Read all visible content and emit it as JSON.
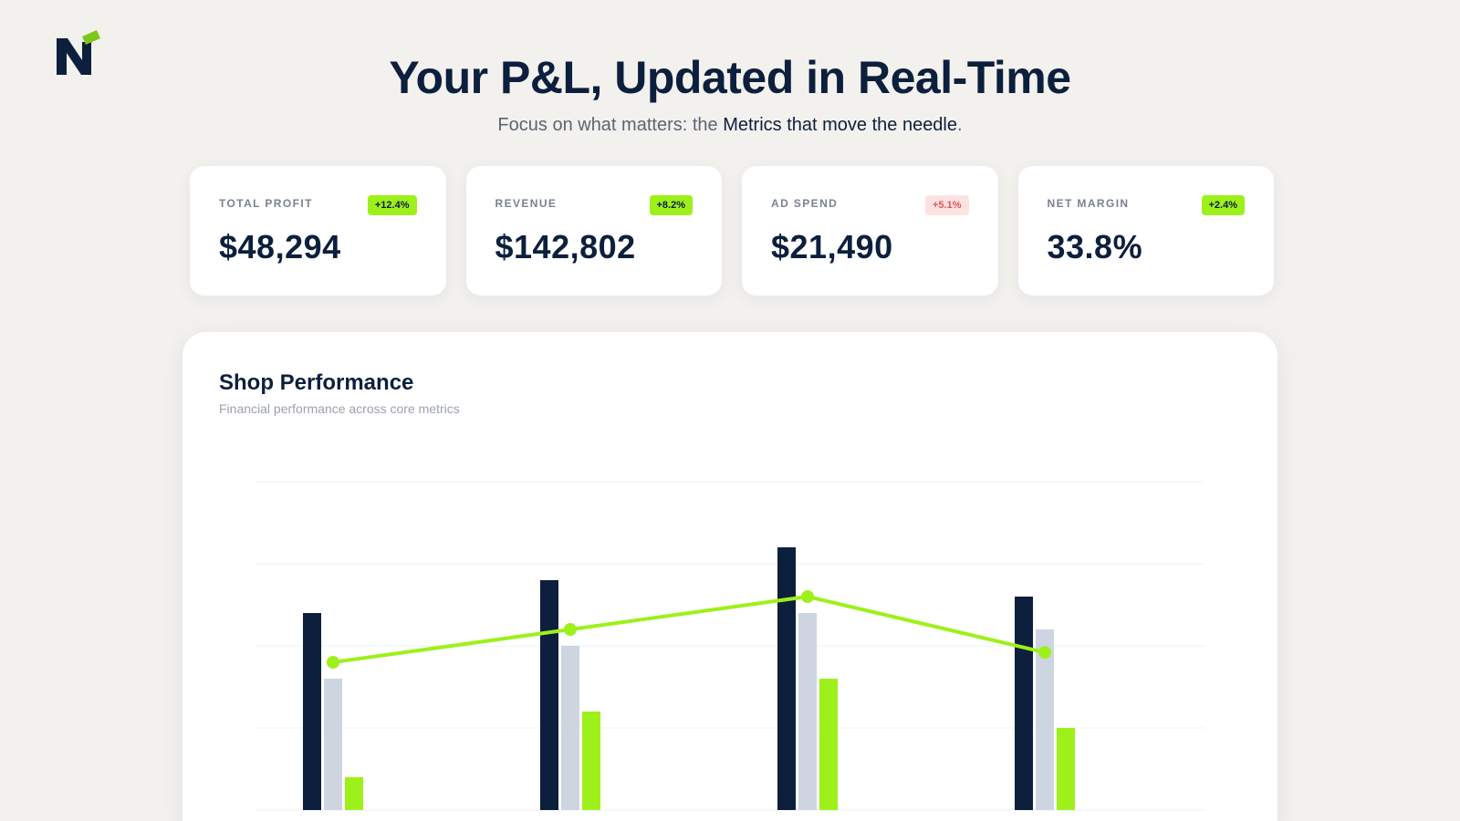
{
  "brand": {
    "logo_icon": "n-logo-icon",
    "accent": "#9ef01a",
    "navy": "#0c1f3d"
  },
  "hero": {
    "title": "Your P&L, Updated in Real-Time",
    "subtitle_prefix": "Focus on what matters: the ",
    "subtitle_highlight": "Metrics that move the needle",
    "subtitle_suffix": "."
  },
  "kpis": [
    {
      "label": "TOTAL PROFIT",
      "badge": "+12.4%",
      "trend": "up",
      "value": "$48,294"
    },
    {
      "label": "REVENUE",
      "badge": "+8.2%",
      "trend": "up",
      "value": "$142,802"
    },
    {
      "label": "AD SPEND",
      "badge": "+5.1%",
      "trend": "down",
      "value": "$21,490"
    },
    {
      "label": "NET MARGIN",
      "badge": "+2.4%",
      "trend": "up",
      "value": "33.8%"
    }
  ],
  "chart_card": {
    "title": "Shop Performance",
    "subtitle": "Financial performance across core metrics"
  },
  "chart_data": {
    "type": "bar",
    "categories": [
      "",
      "",
      "",
      ""
    ],
    "series": [
      {
        "type": "bar",
        "color": "#0c1f3d",
        "values": [
          60,
          70,
          80,
          65
        ]
      },
      {
        "type": "bar",
        "color": "#ccd5e0",
        "values": [
          40,
          50,
          60,
          55
        ]
      },
      {
        "type": "bar",
        "color": "#9ef01a",
        "values": [
          10,
          30,
          40,
          25
        ]
      },
      {
        "type": "line",
        "color": "#9ef01a",
        "values": [
          45,
          55,
          65,
          48
        ]
      }
    ],
    "ylim": [
      0,
      100
    ],
    "grid": true,
    "legend": "none"
  }
}
